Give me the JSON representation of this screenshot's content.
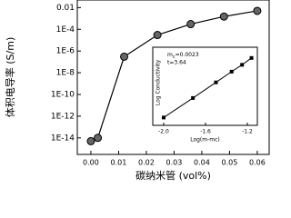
{
  "chart_data": [
    {
      "type": "scatter",
      "x_label": "碳纳米管 (vol%)",
      "y_label": "体积电导率 (S/m)",
      "x": [
        0.0,
        0.0025,
        0.012,
        0.024,
        0.036,
        0.048,
        0.06
      ],
      "values": [
        5e-15,
        1e-14,
        3e-07,
        3e-05,
        0.0003,
        0.0015,
        0.005
      ],
      "color": "#000000",
      "log_y": true,
      "xlim": [
        -0.0049,
        0.0643
      ],
      "ylim": [
        3e-16,
        0.05
      ],
      "xticks": [
        {
          "value": 0.0,
          "label": "0.00"
        },
        0.01,
        0.02,
        0.03,
        0.04,
        0.05,
        0.06
      ],
      "yticks": [
        0.01,
        {
          "value": 0.0001,
          "label": "1E-4"
        },
        {
          "value": 1e-06,
          "label": "1E-6"
        },
        {
          "value": 1e-08,
          "label": "1E-8"
        },
        {
          "value": 1e-10,
          "label": "1E-10"
        },
        {
          "value": 1e-12,
          "label": "1E-12"
        },
        {
          "value": 1e-14,
          "label": "1E-14"
        }
      ]
    },
    {
      "type": "line",
      "x_label": "Log(m-mc)",
      "y_label": "Log Conductivity",
      "annotations": [
        "m",
        "c",
        "=0.0023",
        "t=3.64"
      ],
      "x": [
        -2.0,
        -1.72,
        -1.5,
        -1.35,
        -1.25,
        -1.16
      ],
      "values": [
        -5.6,
        -4.6,
        -3.8,
        -3.25,
        -2.9,
        -2.55
      ],
      "color": "#000000",
      "xlim": [
        -2.104,
        -1.104
      ],
      "ylim": [
        -6,
        -2
      ],
      "xticks": [
        {
          "value": -2.0,
          "label": "-2.0"
        },
        -1.6,
        -1.2
      ]
    }
  ]
}
